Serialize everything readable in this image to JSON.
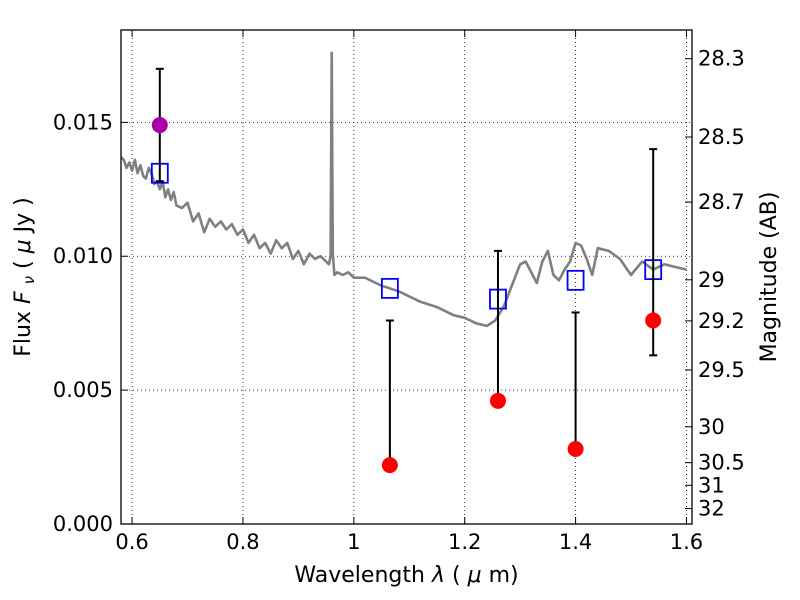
{
  "chart_data": {
    "type": "scatter",
    "xlabel_prefix": "Wavelength",
    "xlabel_symbol": "λ",
    "xlabel_unit_open": " (",
    "xlabel_unit_mu": "μ",
    "xlabel_unit_close": "m)",
    "ylabel_prefix": "Flux",
    "ylabel_symbol_F": "F",
    "ylabel_symbol_nu": "ν",
    "ylabel_unit_open": "  ( ",
    "ylabel_unit_mu": "μ",
    "ylabel_unit_close": "Jy )",
    "y2label": "Magnitude (AB)",
    "xlim": [
      0.58,
      1.61
    ],
    "ylim": [
      0.0,
      0.01845
    ],
    "grid": true,
    "xticks": [
      0.6,
      0.8,
      1.0,
      1.2,
      1.4,
      1.6
    ],
    "xtick_labels": [
      "0.6",
      "0.8",
      "1",
      "1.2",
      "1.4",
      "1.6"
    ],
    "yticks": [
      0.0,
      0.005,
      0.01,
      0.015
    ],
    "ytick_labels": [
      "0.000",
      "0.005",
      "0.010",
      "0.015"
    ],
    "mag_ticks": [
      28.3,
      28.5,
      28.7,
      29,
      29.2,
      29.5,
      30,
      30.5,
      31,
      32
    ],
    "mag_tick_labels": [
      "28.3",
      "28.5",
      "28.7",
      "29",
      "29.2",
      "29.5",
      "30",
      "30.5",
      "31",
      "32"
    ],
    "series": [
      {
        "style": "line",
        "color": "#808080",
        "x": [
          0.58,
          0.585,
          0.59,
          0.595,
          0.6,
          0.605,
          0.61,
          0.615,
          0.62,
          0.625,
          0.63,
          0.635,
          0.64,
          0.645,
          0.65,
          0.655,
          0.66,
          0.665,
          0.67,
          0.675,
          0.68,
          0.69,
          0.7,
          0.71,
          0.72,
          0.73,
          0.74,
          0.75,
          0.76,
          0.77,
          0.78,
          0.79,
          0.8,
          0.81,
          0.82,
          0.83,
          0.84,
          0.85,
          0.86,
          0.87,
          0.88,
          0.89,
          0.9,
          0.91,
          0.92,
          0.93,
          0.94,
          0.95,
          0.955,
          0.958,
          0.96,
          0.962,
          0.965,
          0.97,
          0.98,
          0.99,
          1.0,
          1.02,
          1.05,
          1.08,
          1.1,
          1.12,
          1.15,
          1.18,
          1.2,
          1.22,
          1.24,
          1.255,
          1.27,
          1.3,
          1.31,
          1.33,
          1.34,
          1.35,
          1.36,
          1.37,
          1.38,
          1.39,
          1.4,
          1.41,
          1.42,
          1.43,
          1.44,
          1.46,
          1.48,
          1.5,
          1.52,
          1.54,
          1.56,
          1.58,
          1.6
        ],
        "y": [
          0.0137,
          0.0136,
          0.0133,
          0.0135,
          0.0132,
          0.0136,
          0.0131,
          0.0134,
          0.013,
          0.0129,
          0.0133,
          0.0131,
          0.0127,
          0.0128,
          0.0125,
          0.0128,
          0.0122,
          0.0125,
          0.0121,
          0.0124,
          0.0119,
          0.0118,
          0.012,
          0.0113,
          0.0116,
          0.0109,
          0.0114,
          0.0111,
          0.0113,
          0.011,
          0.0112,
          0.0108,
          0.011,
          0.0105,
          0.0108,
          0.0103,
          0.0105,
          0.0101,
          0.0106,
          0.0103,
          0.0105,
          0.0099,
          0.0102,
          0.0097,
          0.0101,
          0.0099,
          0.01,
          0.0098,
          0.0097,
          0.01,
          0.0176,
          0.0101,
          0.0093,
          0.0094,
          0.0093,
          0.0094,
          0.0092,
          0.0092,
          0.0089,
          0.0087,
          0.0085,
          0.0083,
          0.0081,
          0.0078,
          0.0077,
          0.0075,
          0.0074,
          0.0076,
          0.0081,
          0.0097,
          0.0098,
          0.009,
          0.0098,
          0.0102,
          0.0093,
          0.0091,
          0.0095,
          0.0098,
          0.0105,
          0.0104,
          0.0099,
          0.0093,
          0.0103,
          0.0102,
          0.0099,
          0.0093,
          0.0098,
          0.0095,
          0.0097,
          0.0096,
          0.0095
        ]
      },
      {
        "style": "open-square",
        "color": "#0000ff",
        "x": [
          0.65,
          1.065,
          1.26,
          1.4,
          1.54
        ],
        "y": [
          0.0131,
          0.0088,
          0.0084,
          0.0091,
          0.0095
        ]
      },
      {
        "style": "filled-circle-errorbar",
        "color": "#ff0000",
        "x": [
          1.065,
          1.26,
          1.4,
          1.54
        ],
        "y": [
          0.0022,
          0.0046,
          0.0028,
          0.0076
        ],
        "yerr_low": [
          0.0022,
          0.0046,
          0.0028,
          0.0063
        ],
        "yerr_high": [
          0.0076,
          0.0102,
          0.0079,
          0.014
        ]
      },
      {
        "style": "filled-circle-errorbar",
        "color": "#aa00aa",
        "x": [
          0.65
        ],
        "y": [
          0.0149
        ],
        "yerr_low": [
          0.0128
        ],
        "yerr_high": [
          0.017
        ]
      }
    ]
  }
}
